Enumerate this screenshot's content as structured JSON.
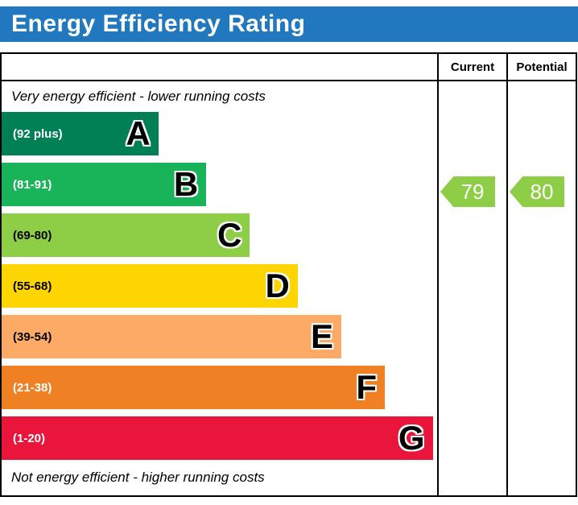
{
  "title": "Energy Efficiency Rating",
  "colors": {
    "header_bar": "#2178be",
    "border": "#000000"
  },
  "table": {
    "current_header": "Current",
    "potential_header": "Potential"
  },
  "captions": {
    "top": "Very energy efficient - lower running costs",
    "bottom": "Not energy efficient - higher running costs"
  },
  "chart_data": {
    "type": "bar",
    "title": "Energy Efficiency Rating",
    "orientation": "horizontal",
    "bands": [
      {
        "letter": "A",
        "range": "(92 plus)",
        "min": 92,
        "max": 100,
        "color": "#008054",
        "text_color": "#ffffff",
        "width_pct": 36
      },
      {
        "letter": "B",
        "range": "(81-91)",
        "min": 81,
        "max": 91,
        "color": "#19b459",
        "text_color": "#ffffff",
        "width_pct": 47
      },
      {
        "letter": "C",
        "range": "(69-80)",
        "min": 69,
        "max": 80,
        "color": "#8dce46",
        "text_color": "#000000",
        "width_pct": 57
      },
      {
        "letter": "D",
        "range": "(55-68)",
        "min": 55,
        "max": 68,
        "color": "#ffd500",
        "text_color": "#000000",
        "width_pct": 68
      },
      {
        "letter": "E",
        "range": "(39-54)",
        "min": 39,
        "max": 54,
        "color": "#fcaa65",
        "text_color": "#000000",
        "width_pct": 78
      },
      {
        "letter": "F",
        "range": "(21-38)",
        "min": 21,
        "max": 38,
        "color": "#ef8023",
        "text_color": "#ffffff",
        "width_pct": 88
      },
      {
        "letter": "G",
        "range": "(1-20)",
        "min": 1,
        "max": 20,
        "color": "#e9153b",
        "text_color": "#ffffff",
        "width_pct": 99
      }
    ],
    "current": {
      "value": 79,
      "band": "C",
      "color": "#8dce46"
    },
    "potential": {
      "value": 80,
      "band": "C",
      "color": "#8dce46"
    }
  }
}
